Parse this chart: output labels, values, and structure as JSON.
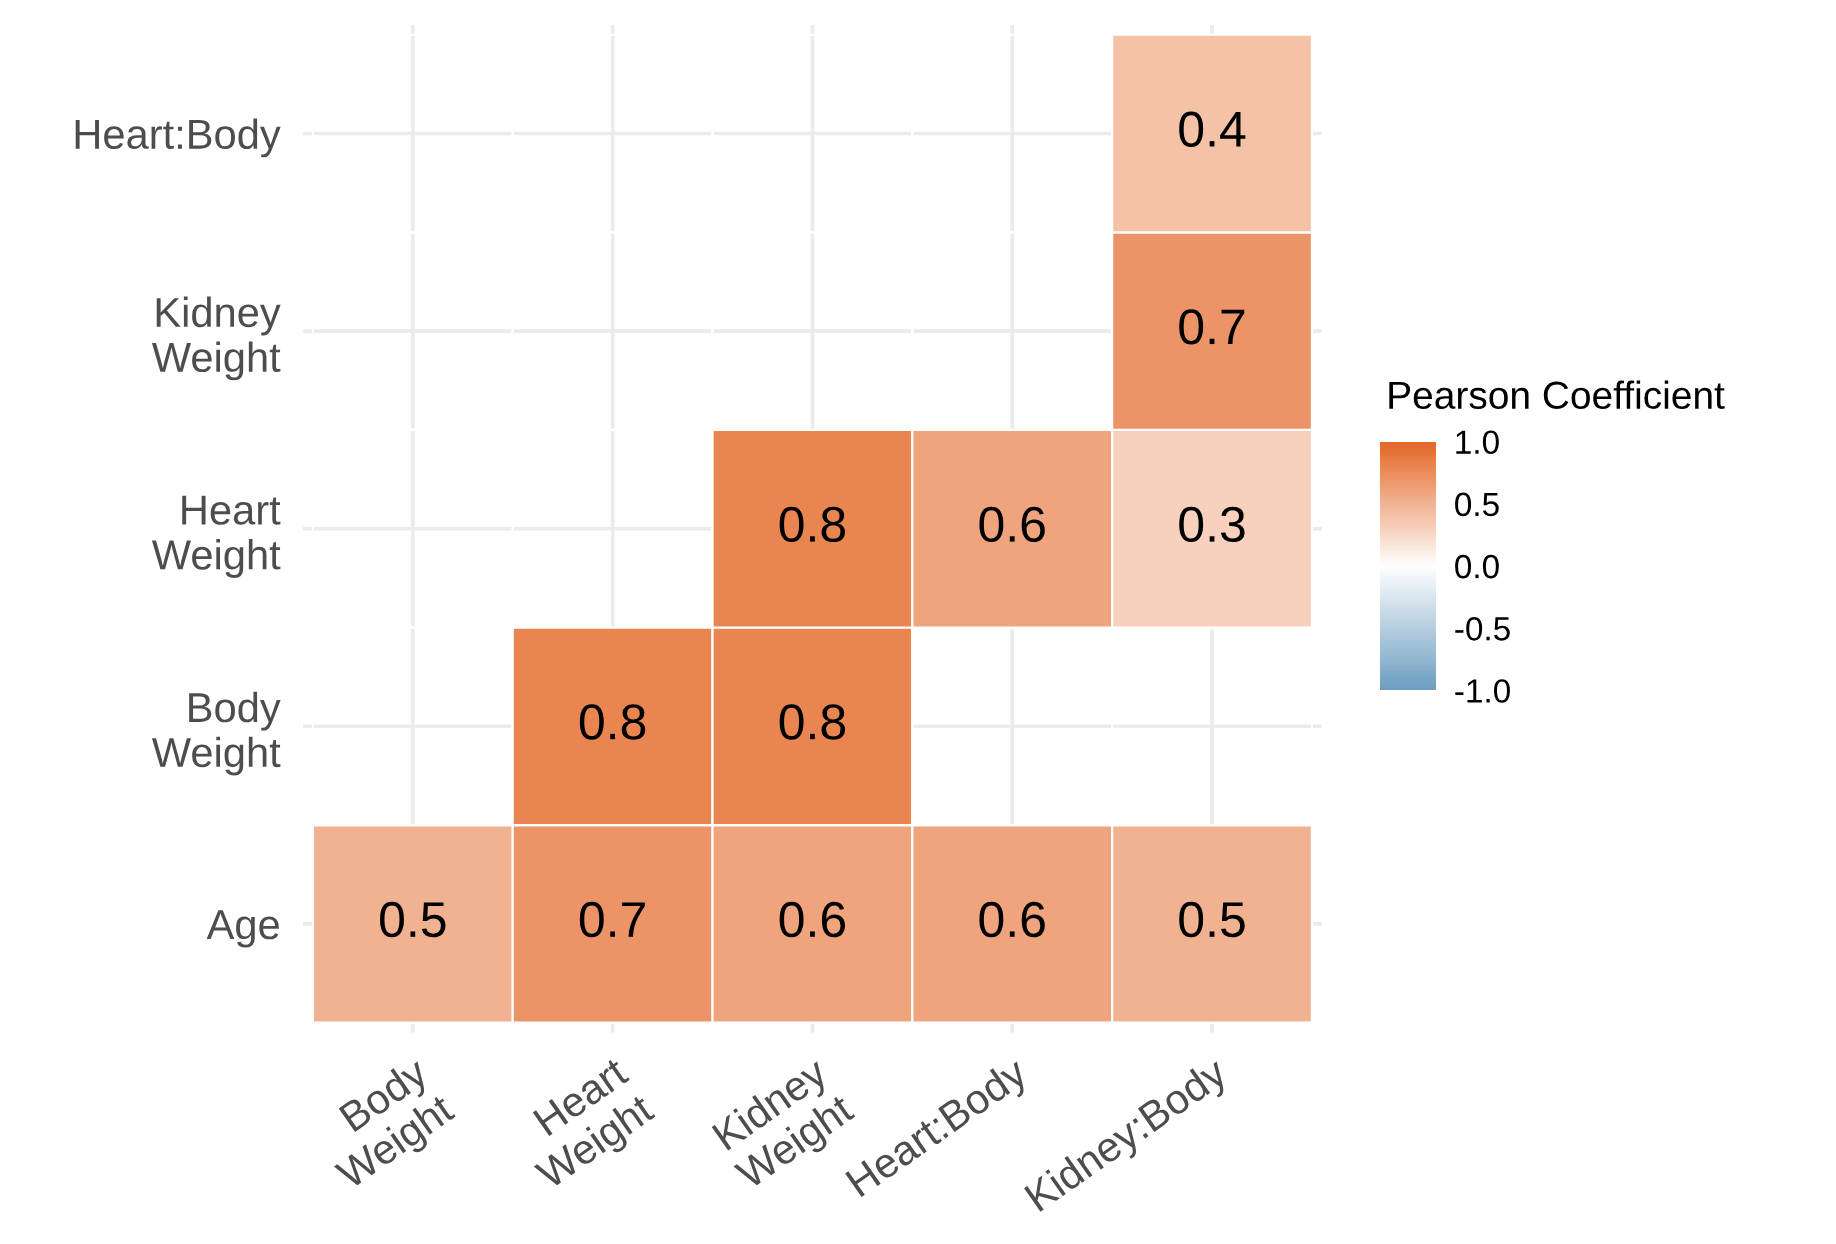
{
  "chart_data": {
    "type": "heatmap",
    "categories": [
      "Body\nWeight",
      "Heart\nWeight",
      "Kidney\nWeight",
      "Heart:Body",
      "Kidney:Body"
    ],
    "y_categories": [
      "Heart:Body",
      "Kidney\nWeight",
      "Heart\nWeight",
      "Body\nWeight",
      "Age"
    ],
    "cells": [
      [
        null,
        null,
        null,
        null,
        0.4
      ],
      [
        null,
        null,
        null,
        null,
        0.7
      ],
      [
        null,
        null,
        0.8,
        0.6,
        0.3
      ],
      [
        null,
        0.8,
        0.8,
        null,
        null
      ],
      [
        0.5,
        0.7,
        0.6,
        0.6,
        0.5
      ]
    ],
    "colors": [
      "#6d9ec1",
      "#ffffff",
      "#e46726"
    ],
    "clim": [
      -1.0,
      1.0
    ],
    "cticks": [
      {
        "value": -1.0,
        "label": "-1.0"
      },
      {
        "value": -0.5,
        "label": "-0.5"
      },
      {
        "value": 0.0,
        "label": "0.0"
      },
      {
        "value": 0.5,
        "label": "0.5"
      },
      {
        "value": 1.0,
        "label": "1.0"
      }
    ],
    "legend_title": "Pearson Coefficient",
    "data_labels": true,
    "grid": true
  }
}
